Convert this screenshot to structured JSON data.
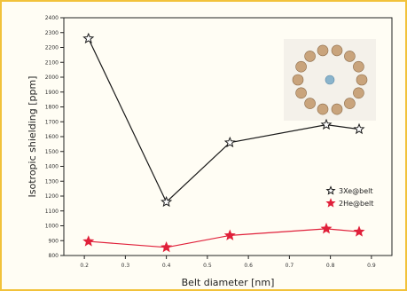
{
  "chart_data": {
    "type": "line",
    "xlabel": "Belt diameter [nm]",
    "ylabel": "Isotropic shielding [ppm]",
    "xlim": [
      0.15,
      0.95
    ],
    "ylim": [
      800,
      2400
    ],
    "x_ticks": [
      "0.2",
      "0.3",
      "0.4",
      "0.5",
      "0.6",
      "0.7",
      "0.8",
      "0.9"
    ],
    "y_ticks": [
      "800",
      "900",
      "1000",
      "1100",
      "1200",
      "1300",
      "1400",
      "1500",
      "1600",
      "1700",
      "1800",
      "1900",
      "2000",
      "2100",
      "2200",
      "2300",
      "2400"
    ],
    "legend_position": "right",
    "series": [
      {
        "name": "3Xe@belt",
        "color": "#1a1a1a",
        "marker": "star-dark",
        "points": [
          [
            0.21,
            2260
          ],
          [
            0.4,
            1160
          ],
          [
            0.555,
            1560
          ],
          [
            0.79,
            1680
          ],
          [
            0.87,
            1650
          ]
        ]
      },
      {
        "name": "2He@belt",
        "color": "#e0203a",
        "marker": "star-red",
        "points": [
          [
            0.21,
            895
          ],
          [
            0.4,
            855
          ],
          [
            0.555,
            935
          ],
          [
            0.79,
            980
          ],
          [
            0.87,
            960
          ]
        ]
      }
    ]
  }
}
